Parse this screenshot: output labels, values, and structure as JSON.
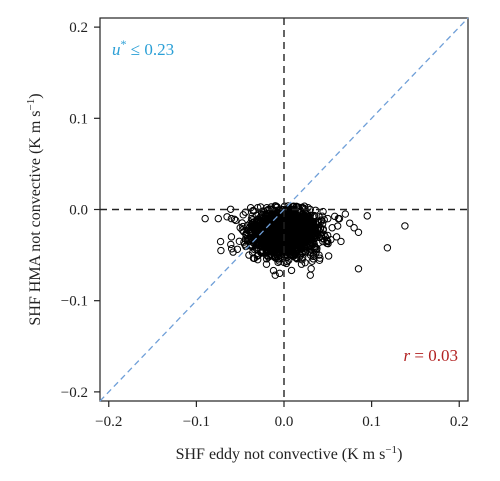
{
  "chart_data": {
    "type": "scatter",
    "title": "",
    "xlabel": "SHF eddy not convective (K m s",
    "xlabel_sup": "−1",
    "xlabel_close": ")",
    "ylabel": "SHF HMA not convective (K m s",
    "ylabel_sup": "−1",
    "ylabel_close": ")",
    "xlim": [
      -0.21,
      0.21
    ],
    "ylim": [
      -0.21,
      0.21
    ],
    "x_ticks": [
      -0.2,
      -0.1,
      0.0,
      0.1,
      0.2
    ],
    "x_tick_labels": [
      "−0.2",
      "−0.1",
      "0.0",
      "0.1",
      "0.2"
    ],
    "y_ticks": [
      -0.2,
      -0.1,
      0.0,
      0.1,
      0.2
    ],
    "y_tick_labels": [
      "−0.2",
      "−0.1",
      "0.0",
      "0.1",
      "0.2"
    ],
    "grid": false,
    "reference_lines": {
      "vertical_zero": "dashed black",
      "horizontal_zero": "dashed black",
      "one_to_one": "dashed blue"
    },
    "annotations": {
      "ustar_symbol": "u",
      "ustar_sup": "*",
      "ustar_text": " ≤ 0.23",
      "r_symbol": "r",
      "r_text": " = 0.03"
    },
    "colors": {
      "points": "#000000",
      "one_to_one": "#6f9fd8",
      "ustar_annotation": "#2a9fd6",
      "r_annotation": "#b22222"
    },
    "cluster": {
      "description_center_x": 0.0,
      "description_center_y": -0.025,
      "count": 2000
    },
    "points": [
      [
        -0.09,
        -0.01
      ],
      [
        -0.075,
        -0.01
      ],
      [
        -0.072,
        -0.045
      ],
      [
        -0.06,
        -0.03
      ],
      [
        -0.055,
        -0.012
      ],
      [
        -0.05,
        -0.02
      ],
      [
        -0.045,
        -0.038
      ],
      [
        -0.04,
        -0.05
      ],
      [
        -0.03,
        -0.055
      ],
      [
        -0.02,
        -0.06
      ],
      [
        -0.012,
        -0.067
      ],
      [
        -0.01,
        -0.072
      ],
      [
        -0.005,
        -0.07
      ],
      [
        0.0,
        -0.058
      ],
      [
        0.01,
        -0.05
      ],
      [
        0.02,
        -0.06
      ],
      [
        0.03,
        -0.072
      ],
      [
        0.04,
        -0.05
      ],
      [
        0.05,
        -0.035
      ],
      [
        0.055,
        -0.02
      ],
      [
        0.06,
        -0.03
      ],
      [
        0.062,
        -0.01
      ],
      [
        0.065,
        -0.035
      ],
      [
        0.07,
        -0.005
      ],
      [
        0.075,
        -0.015
      ],
      [
        0.08,
        -0.02
      ],
      [
        0.085,
        -0.025
      ],
      [
        0.095,
        -0.007
      ],
      [
        0.085,
        -0.065
      ],
      [
        0.118,
        -0.042
      ],
      [
        0.138,
        -0.018
      ],
      [
        -0.03,
        0.002
      ],
      [
        -0.01,
        0.004
      ],
      [
        0.01,
        0.003
      ],
      [
        0.03,
        0.0
      ],
      [
        0.04,
        -0.008
      ],
      [
        0.05,
        -0.01
      ],
      [
        -0.065,
        -0.008
      ]
    ]
  }
}
